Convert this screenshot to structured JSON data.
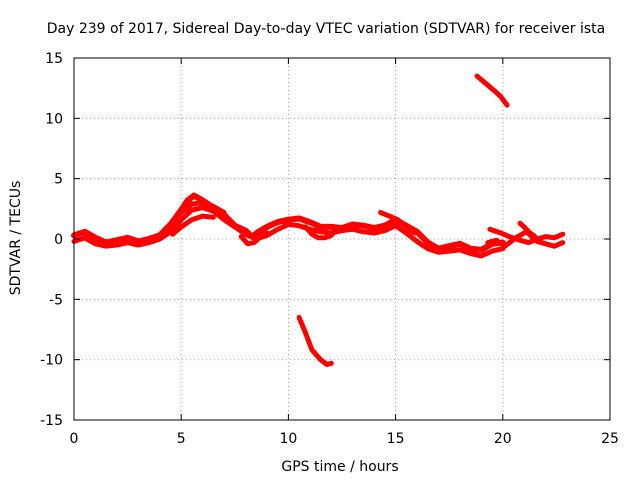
{
  "chart_data": {
    "type": "line",
    "title": "Day 239 of 2017, Sidereal Day-to-day VTEC variation (SDTVAR) for receiver ista",
    "xlabel": "GPS time / hours",
    "ylabel": "SDTVAR / TECUs",
    "xlim": [
      0,
      25
    ],
    "ylim": [
      -15,
      15
    ],
    "xticks": [
      0,
      5,
      10,
      15,
      20,
      25
    ],
    "yticks": [
      -15,
      -10,
      -5,
      0,
      5,
      10,
      15
    ],
    "grid": true,
    "series_color": "#ff0000",
    "series": [
      {
        "name": "main-band-a",
        "width": 6,
        "x": [
          0,
          0.5,
          1,
          1.5,
          2,
          2.5,
          3,
          3.5,
          4,
          4.5,
          5,
          5.3,
          5.6,
          6,
          6.5,
          7,
          7.5,
          8,
          8.3,
          8.6,
          9,
          9.5,
          10,
          10.5,
          11,
          11.5,
          12,
          12.5,
          13,
          13.5,
          14,
          14.5,
          15,
          15.5,
          16,
          16.5,
          17,
          17.5,
          18,
          18.5,
          19,
          19.5,
          20
        ],
        "y": [
          0.3,
          0.6,
          0.1,
          -0.3,
          -0.1,
          0.1,
          -0.2,
          0,
          0.3,
          1.2,
          2.4,
          3.2,
          3.6,
          3.2,
          2.6,
          2,
          1.1,
          0.7,
          0.2,
          0.6,
          1,
          1.4,
          1.6,
          1.7,
          1.4,
          1,
          1,
          0.9,
          1.2,
          1.1,
          0.9,
          1.1,
          1.6,
          1.1,
          0.6,
          -0.3,
          -0.8,
          -0.6,
          -0.4,
          -0.8,
          -0.9,
          -0.4,
          -0.3
        ]
      },
      {
        "name": "main-band-b",
        "width": 5,
        "x": [
          0,
          0.5,
          1,
          1.5,
          2,
          2.5,
          3,
          3.5,
          4,
          4.5,
          5,
          5.5,
          6,
          6.5,
          7,
          7.5,
          8,
          8.5,
          9,
          9.5,
          10,
          10.5,
          11,
          11.5,
          12,
          12.5,
          13,
          13.5,
          14,
          14.5,
          15,
          15.5,
          16,
          16.5,
          17,
          17.5,
          18,
          18.5,
          19,
          19.5,
          20
        ],
        "y": [
          -0.2,
          0.1,
          -0.4,
          -0.6,
          -0.5,
          -0.3,
          -0.5,
          -0.3,
          0,
          0.6,
          1.6,
          2.4,
          2.6,
          2.3,
          1.6,
          1,
          0.4,
          0,
          0.3,
          0.8,
          1.2,
          1.1,
          0.8,
          0.6,
          0.5,
          0.7,
          0.8,
          0.6,
          0.5,
          0.7,
          1.1,
          0.5,
          -0.2,
          -0.8,
          -1.1,
          -1,
          -0.9,
          -1.2,
          -1.4,
          -1,
          -0.8
        ]
      },
      {
        "name": "segment-after-20h",
        "width": 5,
        "x": [
          19.3,
          19.7,
          20.1,
          20.6,
          21.1,
          21.6,
          22,
          22.4,
          22.8
        ],
        "y": [
          -0.3,
          -0.1,
          -0.6,
          0.1,
          0.6,
          -0.2,
          -0.4,
          -0.6,
          -0.3
        ]
      },
      {
        "name": "segment-after-20h-b",
        "width": 5,
        "x": [
          19.4,
          19.9,
          20.3,
          20.8,
          21.2,
          21.6,
          22,
          22.4,
          22.8
        ],
        "y": [
          0.8,
          0.5,
          0.2,
          -0.1,
          -0.3,
          0,
          0.2,
          0.1,
          0.4
        ]
      },
      {
        "name": "segment-21h-hook",
        "width": 5,
        "x": [
          20.8,
          21,
          21.2,
          21.5
        ],
        "y": [
          1.3,
          1,
          0.6,
          0.2
        ]
      },
      {
        "name": "segment-4-7h-upper",
        "width": 5,
        "x": [
          4.7,
          5,
          5.5,
          6,
          6.5,
          7
        ],
        "y": [
          1.6,
          2.2,
          2.9,
          3.0,
          2.7,
          2.2
        ]
      },
      {
        "name": "segment-4-7h-lower",
        "width": 5,
        "x": [
          4.6,
          5,
          5.5,
          6,
          6.5
        ],
        "y": [
          0.4,
          1.0,
          1.6,
          1.9,
          1.8
        ]
      },
      {
        "name": "segment-8h-dip",
        "width": 5,
        "x": [
          7.8,
          8.1,
          8.4,
          8.7,
          9
        ],
        "y": [
          0.2,
          -0.4,
          -0.3,
          0.2,
          0.5
        ]
      },
      {
        "name": "segment-11h-loop",
        "width": 5,
        "x": [
          10.8,
          11.1,
          11.4,
          11.7,
          12,
          12.2
        ],
        "y": [
          1,
          0.4,
          0.1,
          0.1,
          0.3,
          0.8
        ]
      },
      {
        "name": "segment-14-15h",
        "width": 5,
        "x": [
          14.3,
          14.7,
          15.1,
          15.5,
          15.9
        ],
        "y": [
          2.2,
          1.9,
          1.6,
          1.0,
          0.5
        ]
      },
      {
        "name": "segment-negative-10h",
        "width": 5,
        "x": [
          10.5,
          10.8,
          11.1,
          11.5,
          11.8,
          12
        ],
        "y": [
          -6.5,
          -7.8,
          -9.2,
          -10,
          -10.4,
          -10.3
        ]
      },
      {
        "name": "segment-positive-19h",
        "width": 5,
        "x": [
          18.8,
          19.2,
          19.6,
          19.9,
          20.2
        ],
        "y": [
          13.5,
          12.9,
          12.3,
          11.8,
          11.1
        ]
      }
    ]
  }
}
